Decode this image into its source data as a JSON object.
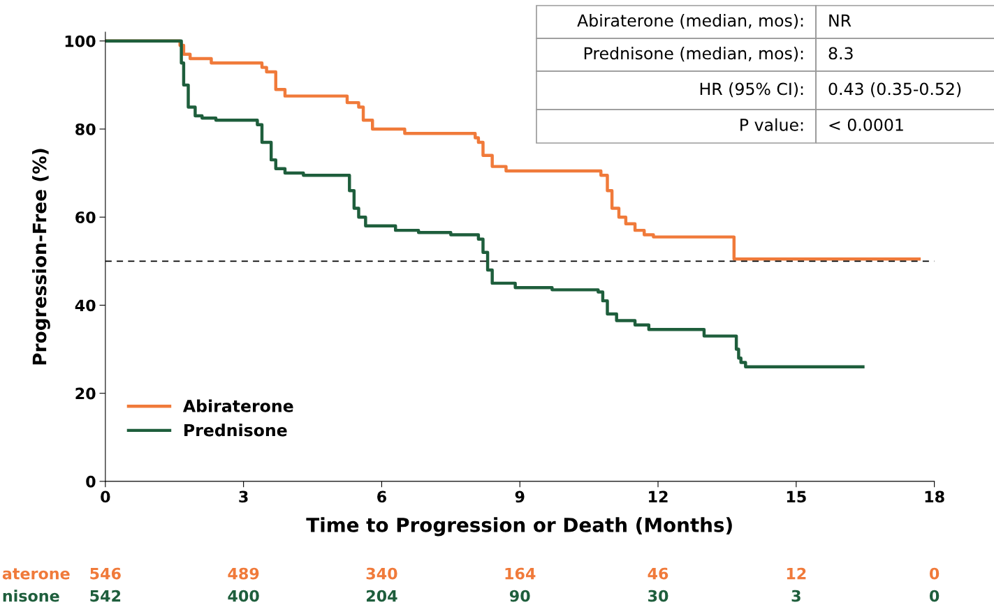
{
  "chart_data": {
    "type": "step",
    "xlabel": "Time to Progression or Death (Months)",
    "ylabel": "Progression-Free (%)",
    "xlim": [
      0,
      18
    ],
    "ylim": [
      0,
      102
    ],
    "xticks": [
      0,
      3,
      6,
      9,
      12,
      15,
      18
    ],
    "yticks": [
      0,
      20,
      40,
      60,
      80,
      100
    ],
    "grid": false,
    "legend": "bottom left",
    "line_style": "solid",
    "marker": "none",
    "series": [
      {
        "name": "Abiraterone",
        "color": "#f07a3a",
        "x": [
          0,
          1.62,
          1.7,
          1.84,
          2.3,
          3.4,
          3.5,
          3.7,
          3.9,
          5.25,
          5.5,
          5.6,
          5.8,
          6.5,
          8.03,
          8.1,
          8.2,
          8.4,
          8.7,
          10.76,
          10.9,
          11.0,
          11.15,
          11.3,
          11.5,
          11.7,
          11.9,
          13.65,
          17.67
        ],
        "values": [
          100,
          99,
          97,
          96,
          95,
          94,
          93,
          89,
          87.5,
          86,
          85,
          82,
          80,
          79,
          78,
          77,
          74,
          71.5,
          70.5,
          69.5,
          66,
          62,
          60,
          58.5,
          57,
          56,
          55.5,
          50.5,
          50.5
        ]
      },
      {
        "name": "Prednisone",
        "color": "#1e5e3c",
        "x": [
          0,
          1.65,
          1.7,
          1.8,
          1.95,
          2.1,
          2.4,
          3.3,
          3.4,
          3.6,
          3.7,
          3.9,
          4.3,
          5.3,
          5.4,
          5.5,
          5.65,
          6.3,
          6.8,
          7.5,
          8.1,
          8.2,
          8.3,
          8.4,
          8.9,
          9.7,
          10.7,
          10.8,
          10.9,
          11.1,
          11.5,
          11.8,
          13.0,
          13.7,
          13.75,
          13.8,
          13.9,
          16.45
        ],
        "values": [
          100,
          95,
          90,
          85,
          83,
          82.5,
          82,
          81,
          77,
          73,
          71,
          70,
          69.5,
          66,
          62,
          60,
          58,
          57,
          56.5,
          56,
          55,
          52,
          48,
          45,
          44,
          43.5,
          43,
          41,
          38,
          36.5,
          35.5,
          34.5,
          33,
          30,
          28,
          27,
          26,
          26
        ]
      }
    ],
    "ref_lines": [
      {
        "axis": "y",
        "value": 50,
        "color": "#000000",
        "line_style": "dashed"
      }
    ],
    "annotations": [
      "Abiraterone (median, mos):",
      "NR",
      "Prednisone (median, mos):",
      "8.3",
      "HR (95% CI):",
      "0.43 (0.35-0.52)",
      "P value:",
      "< 0.0001",
      "aterone",
      "546",
      "489",
      "340",
      "164",
      "46",
      "12",
      "0",
      "nisone",
      "542",
      "400",
      "204",
      "90",
      "30",
      "3",
      "0"
    ]
  }
}
